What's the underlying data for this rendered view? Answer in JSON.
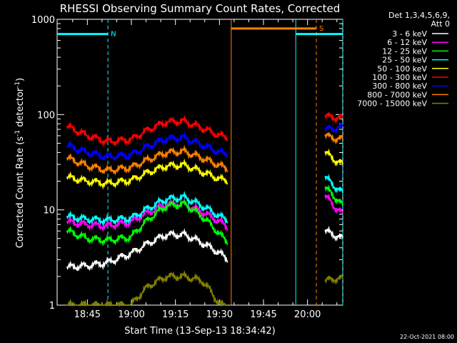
{
  "chart_data": {
    "type": "line",
    "title": "RHESSI Observing Summary Count Rates, Corrected",
    "xlabel": "Start Time (13-Sep-13 18:34:42)",
    "ylabel_main": "Corrected Count Rate (s",
    "ylabel_sup1": "-1",
    "ylabel_mid": " detector",
    "ylabel_sup2": "-1",
    "ylabel_end": ")",
    "yscale": "log",
    "ylim": [
      1,
      1000
    ],
    "xlim": [
      "18:34:42",
      "20:12:00"
    ],
    "x_ticks": [
      "18:45",
      "19:00",
      "19:15",
      "19:30",
      "19:45",
      "20:00"
    ],
    "y_ticks": [
      "1",
      "10",
      "100",
      "1000"
    ],
    "legend_header": [
      "Det 1,3,4,5,6,9,",
      "Att 0"
    ],
    "legend_position": "right",
    "footer_date": "22-Oct-2021 08:00",
    "data_gap": {
      "start": "19:33:30",
      "end": "20:06:00"
    },
    "series": [
      {
        "name": "3 - 6 keV",
        "color": "#ffffff",
        "values_before_gap": [
          2.5,
          2.6,
          2.8,
          3.5,
          4.5,
          5.5,
          5.5,
          4.5,
          3.5,
          3.0
        ],
        "values_after_gap": [
          6.0,
          5.5,
          5.0
        ]
      },
      {
        "name": "6 - 12 keV",
        "color": "#ff00ff",
        "values_before_gap": [
          7.5,
          7.0,
          6.8,
          7.5,
          9.5,
          11.5,
          11.5,
          9.5,
          7.5,
          6.5
        ],
        "values_after_gap": [
          14.0,
          11.0,
          9.0
        ]
      },
      {
        "name": "12 - 25 keV",
        "color": "#00ff00",
        "values_before_gap": [
          6.0,
          5.0,
          4.8,
          5.2,
          8.0,
          11.0,
          11.5,
          8.5,
          5.5,
          4.6
        ],
        "values_after_gap": [
          17.0,
          14.0,
          11.0
        ]
      },
      {
        "name": "25 - 50 keV",
        "color": "#00ffff",
        "values_before_gap": [
          8.5,
          8.0,
          7.8,
          8.2,
          10.5,
          13.0,
          13.5,
          11.0,
          8.5,
          7.8
        ],
        "values_after_gap": [
          22.0,
          18.0,
          15.0
        ]
      },
      {
        "name": "50 - 100 keV",
        "color": "#ffff00",
        "values_before_gap": [
          22.0,
          20.0,
          19.0,
          20.5,
          25.0,
          29.0,
          29.5,
          25.0,
          21.0,
          20.0
        ],
        "values_after_gap": [
          40.0,
          34.0,
          30.0
        ]
      },
      {
        "name": "100 - 300 keV",
        "color": "#ff0000",
        "values_before_gap": [
          75.0,
          60.0,
          52.0,
          55.0,
          70.0,
          84.0,
          85.0,
          72.0,
          60.0,
          57.0
        ],
        "values_after_gap": [
          96.0,
          94.0,
          92.0
        ]
      },
      {
        "name": "300 - 800 keV",
        "color": "#0000ff",
        "values_before_gap": [
          47.0,
          40.0,
          36.0,
          38.0,
          47.0,
          56.0,
          57.0,
          48.0,
          40.0,
          38.0
        ],
        "values_after_gap": [
          70.0,
          72.0,
          74.0
        ]
      },
      {
        "name": "800 - 7000 keV",
        "color": "#ff8000",
        "values_before_gap": [
          35.0,
          29.0,
          26.0,
          28.0,
          34.0,
          40.0,
          41.0,
          35.0,
          29.0,
          27.0
        ],
        "values_after_gap": [
          60.0,
          57.0,
          55.0
        ]
      },
      {
        "name": "7000 - 15000 keV",
        "color": "#808000",
        "values_before_gap": [
          1.0,
          1.0,
          1.0,
          1.0,
          1.6,
          2.0,
          2.0,
          1.8,
          1.0,
          1.0
        ],
        "values_after_gap": [
          1.8,
          1.9,
          1.9
        ]
      }
    ],
    "before_gap_times": [
      "18:38",
      "18:45",
      "18:52",
      "19:00",
      "19:06",
      "19:12",
      "19:18",
      "19:24",
      "19:30",
      "19:33"
    ],
    "after_gap_times": [
      "20:06",
      "20:09",
      "20:12"
    ],
    "flags": [
      {
        "label": "N",
        "color": "#00ffff",
        "level": 700,
        "segments": [
          [
            "18:34:42",
            "18:52:00"
          ],
          [
            "19:56:00",
            "20:12:00"
          ]
        ]
      },
      {
        "label": "S",
        "color": "#ff8000",
        "level": 800,
        "segments": [
          [
            "19:34:00",
            "20:03:00"
          ]
        ]
      }
    ],
    "vertical_markers": [
      {
        "time": "18:52:00",
        "color": "#00ffff",
        "style": "dashed"
      },
      {
        "time": "19:34:00",
        "color": "#ff8000",
        "style": "solid"
      },
      {
        "time": "19:56:00",
        "color": "#00ffff",
        "style": "solid"
      },
      {
        "time": "20:03:00",
        "color": "#ff8000",
        "style": "dashed"
      },
      {
        "time": "20:12:00",
        "color": "#00ffff",
        "style": "dashed"
      }
    ]
  }
}
